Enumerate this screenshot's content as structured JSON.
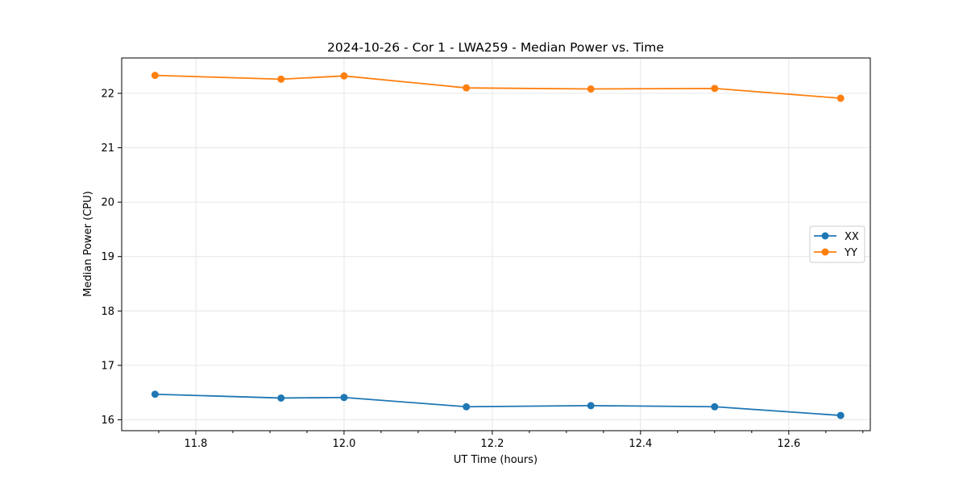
{
  "chart_data": {
    "type": "line",
    "title": "2024-10-26 - Cor 1 - LWA259 - Median Power vs. Time",
    "xlabel": "UT Time (hours)",
    "ylabel": "Median Power (CPU)",
    "xlim": [
      11.7,
      12.71
    ],
    "ylim": [
      15.8,
      22.65
    ],
    "xticks": [
      11.8,
      12.0,
      12.2,
      12.4,
      12.6
    ],
    "xtick_labels": [
      "11.8",
      "12.0",
      "12.2",
      "12.4",
      "12.6"
    ],
    "x_minor_ticks": [
      11.75,
      11.85,
      11.9,
      11.95,
      12.05,
      12.1,
      12.15,
      12.25,
      12.3,
      12.35,
      12.45,
      12.5,
      12.55,
      12.65,
      12.7
    ],
    "yticks": [
      16,
      17,
      18,
      19,
      20,
      21,
      22
    ],
    "ytick_labels": [
      "16",
      "17",
      "18",
      "19",
      "20",
      "21",
      "22"
    ],
    "grid": true,
    "legend_position": "center-right",
    "x": [
      11.745,
      11.915,
      12.0,
      12.165,
      12.333,
      12.5,
      12.67
    ],
    "series": [
      {
        "name": "XX",
        "color": "#1f77b4",
        "marker": "circle",
        "values": [
          16.47,
          16.4,
          16.41,
          16.24,
          16.26,
          16.24,
          16.08
        ]
      },
      {
        "name": "YY",
        "color": "#ff7f0e",
        "marker": "circle",
        "values": [
          22.33,
          22.26,
          22.32,
          22.1,
          22.08,
          22.09,
          21.91
        ]
      }
    ]
  }
}
